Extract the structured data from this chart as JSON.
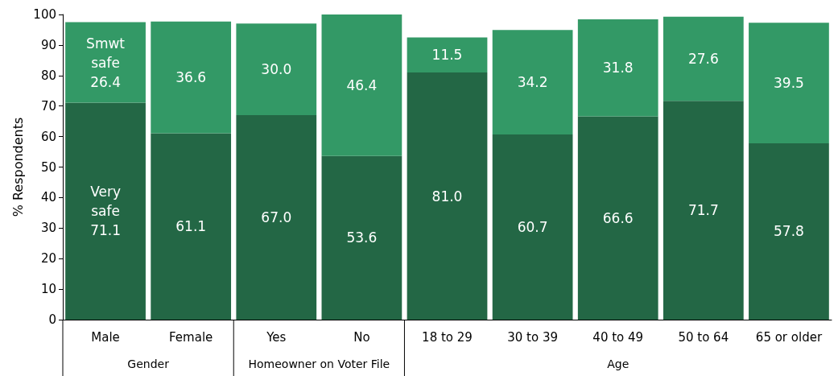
{
  "chart_data": {
    "type": "bar",
    "stacked": true,
    "ylabel": "% Respondents",
    "categories": [
      "Male",
      "Female",
      "Yes",
      "No",
      "18 to 29",
      "30 to 39",
      "40 to 49",
      "50 to 64",
      "65 or older"
    ],
    "series": [
      {
        "name": "Very safe",
        "color": "#236745",
        "values": [
          71.1,
          61.1,
          67.0,
          53.6,
          81.0,
          60.7,
          66.6,
          71.7,
          57.8
        ],
        "value_labels": [
          "71.1",
          "61.1",
          "67.0",
          "53.6",
          "81.0",
          "60.7",
          "66.6",
          "71.7",
          "57.8"
        ]
      },
      {
        "name": "Smwt safe",
        "color": "#339966",
        "values": [
          26.4,
          36.6,
          30.0,
          46.4,
          11.5,
          34.2,
          31.8,
          27.6,
          39.5
        ],
        "value_labels": [
          "26.4",
          "36.6",
          "30.0",
          "46.4",
          "11.5",
          "34.2",
          "31.8",
          "27.6",
          "39.5"
        ]
      }
    ],
    "ylim": [
      0,
      100
    ],
    "yticks": [
      0,
      10,
      20,
      30,
      40,
      50,
      60,
      70,
      80,
      90,
      100
    ],
    "grid": false,
    "legend": false,
    "annotations": [
      "Gender",
      "Homeowner on Voter File",
      "Age"
    ]
  }
}
